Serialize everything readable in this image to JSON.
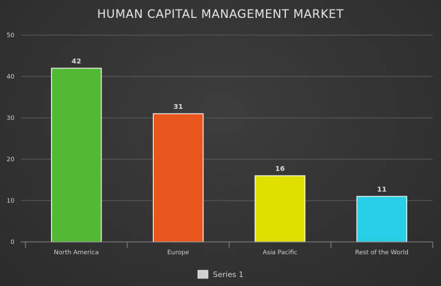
{
  "chart_data": {
    "type": "bar",
    "title": "HUMAN CAPITAL MANAGEMENT MARKET",
    "categories": [
      "North America",
      "Europe",
      "Asia Pacific",
      "Rest of the World"
    ],
    "series": [
      {
        "name": "Series 1",
        "values": [
          42,
          31,
          16,
          11
        ]
      }
    ],
    "bar_colors": [
      "#52b935",
      "#e8561d",
      "#dfe000",
      "#26cfe5"
    ],
    "ylim": [
      0,
      50
    ],
    "yticks": [
      0,
      10,
      20,
      30,
      40,
      50
    ],
    "grid": true,
    "legend_position": "bottom-center"
  }
}
